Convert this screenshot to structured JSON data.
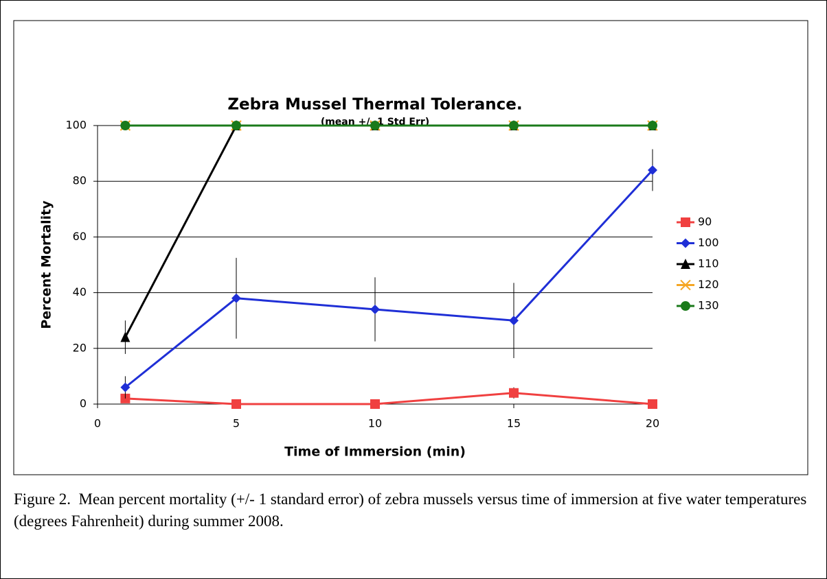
{
  "chart_data": {
    "type": "line",
    "title": "Zebra Mussel Thermal Tolerance.",
    "subtitle": "(mean +/- 1 Std Err)",
    "x_label": "Time of Immersion (min)",
    "y_label": "Percent Mortality",
    "x": [
      1,
      5,
      10,
      15,
      20
    ],
    "series": [
      {
        "name": "90",
        "color": "#f04040",
        "marker": "square",
        "values": [
          2,
          0,
          0,
          4,
          0
        ],
        "errors": [
          1,
          0,
          0,
          2,
          0
        ]
      },
      {
        "name": "100",
        "color": "#1f2fd6",
        "marker": "diamond",
        "values": [
          6,
          38,
          34,
          30,
          84
        ],
        "errors": [
          4,
          14.5,
          11.5,
          13.5,
          7.5
        ]
      },
      {
        "name": "110",
        "color": "#000000",
        "marker": "triangle",
        "values": [
          24,
          100,
          100,
          100,
          100
        ],
        "errors": [
          6,
          0,
          0,
          0,
          0
        ]
      },
      {
        "name": "120",
        "color": "#f5a623",
        "marker": "x",
        "values": [
          100,
          100,
          100,
          100,
          100
        ],
        "errors": [
          0,
          0,
          0,
          0,
          0
        ]
      },
      {
        "name": "130",
        "color": "#1a7a1a",
        "marker": "circle",
        "values": [
          100,
          100,
          100,
          100,
          100
        ],
        "errors": [
          0,
          0,
          0,
          0,
          0
        ]
      }
    ],
    "xlim": [
      0,
      20
    ],
    "xticks": [
      0,
      5,
      10,
      15,
      20
    ],
    "ylim": [
      0,
      100
    ],
    "yticks": [
      0,
      20,
      40,
      60,
      80,
      100
    ],
    "grid": true,
    "legend": "right"
  },
  "caption": "Figure 2.  Mean percent mortality (+/- 1 standard error) of zebra mussels versus time of immersion at five water temperatures (degrees Fahrenheit) during summer 2008."
}
